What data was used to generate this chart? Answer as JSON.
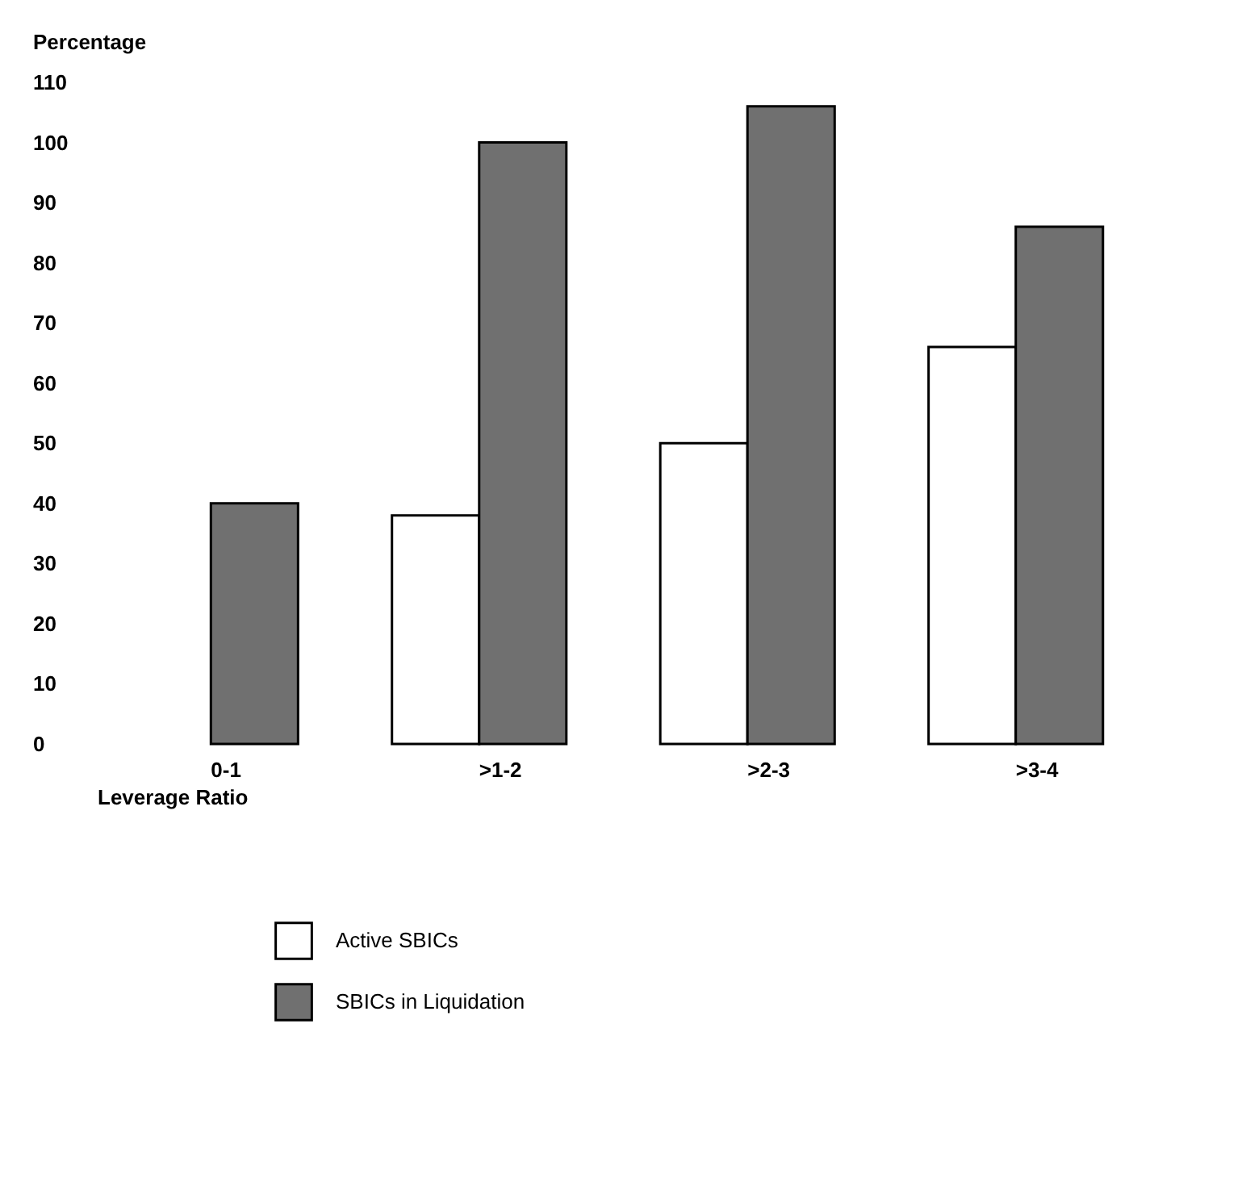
{
  "chart_data": {
    "type": "bar",
    "xlabel": "Leverage Ratio",
    "ylabel": "Percentage",
    "categories": [
      "0-1",
      ">1-2",
      ">2-3",
      ">3-4"
    ],
    "series": [
      {
        "name": "Active SBICs",
        "color": "#ffffff",
        "values": [
          0,
          38,
          50,
          66
        ]
      },
      {
        "name": "SBICs in Liquidation",
        "color": "#707070",
        "values": [
          40,
          100,
          106,
          86
        ]
      }
    ],
    "ylim": [
      0,
      110
    ],
    "yticks": [
      0,
      10,
      20,
      30,
      40,
      50,
      60,
      70,
      80,
      90,
      100,
      110
    ],
    "grid": false,
    "legend": "bottom left"
  }
}
